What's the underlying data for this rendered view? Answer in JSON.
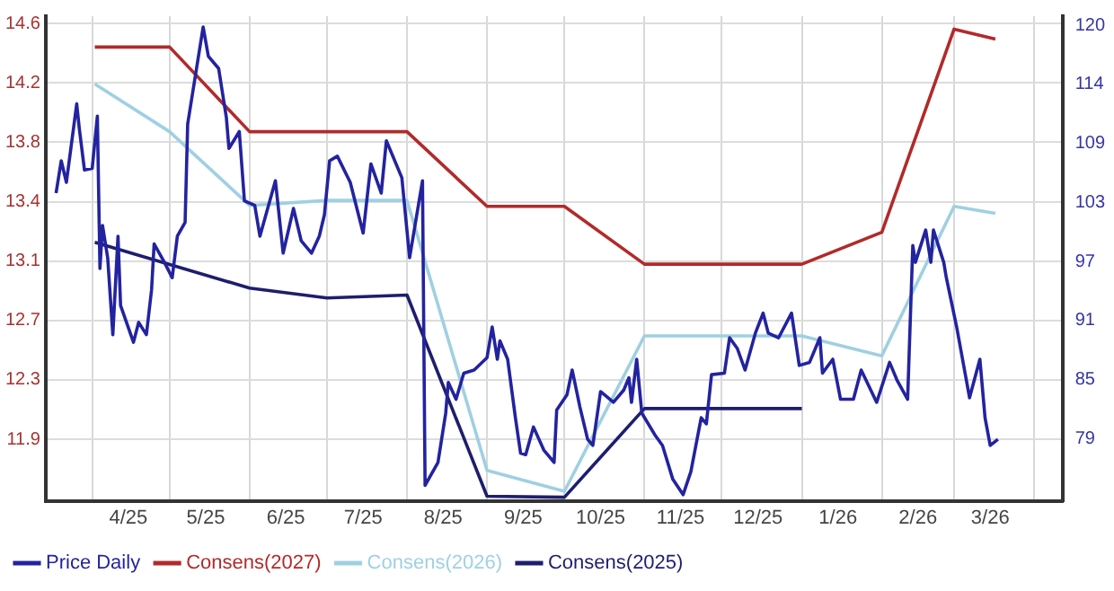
{
  "chart_data": {
    "type": "line",
    "legend": "bottom left",
    "grid": true,
    "marker": "none",
    "line_style": "solid",
    "xlim": [
      "2025-03-14",
      "2026-04-12"
    ],
    "xticks": [
      {
        "value": "2025-04-01",
        "label": null
      },
      {
        "value": "2025-04-15",
        "label": "4/25"
      },
      {
        "value": "2025-05-01",
        "label": null
      },
      {
        "value": "2025-05-15",
        "label": "5/25"
      },
      {
        "value": "2025-06-01",
        "label": null
      },
      {
        "value": "2025-06-15",
        "label": "6/25"
      },
      {
        "value": "2025-07-01",
        "label": null
      },
      {
        "value": "2025-07-15",
        "label": "7/25"
      },
      {
        "value": "2025-08-01",
        "label": null
      },
      {
        "value": "2025-08-15",
        "label": "8/25"
      },
      {
        "value": "2025-09-01",
        "label": null
      },
      {
        "value": "2025-09-15",
        "label": "9/25"
      },
      {
        "value": "2025-10-01",
        "label": null
      },
      {
        "value": "2025-10-15",
        "label": "10/25"
      },
      {
        "value": "2025-11-01",
        "label": null
      },
      {
        "value": "2025-11-15",
        "label": "11/25"
      },
      {
        "value": "2025-12-01",
        "label": null
      },
      {
        "value": "2025-12-15",
        "label": "12/25"
      },
      {
        "value": "2026-01-01",
        "label": null
      },
      {
        "value": "2026-01-15",
        "label": "1/26"
      },
      {
        "value": "2026-02-01",
        "label": null
      },
      {
        "value": "2026-02-15",
        "label": "2/26"
      },
      {
        "value": "2026-03-01",
        "label": null
      },
      {
        "value": "2026-03-15",
        "label": "3/26"
      },
      {
        "value": "2026-04-01",
        "label": null
      }
    ],
    "ylim": [
      11.5,
      14.65
    ],
    "yticks": [
      11.9,
      {
        "value": 12.286,
        "label": "12.3"
      },
      {
        "value": 12.672,
        "label": "12.7"
      },
      {
        "value": 13.058,
        "label": "13.1"
      },
      {
        "value": 13.444,
        "label": "13.4"
      },
      {
        "value": 13.83,
        "label": "13.8"
      },
      {
        "value": 14.216,
        "label": "14.2"
      },
      {
        "value": 14.602,
        "label": "14.6"
      }
    ],
    "y2lim": [
      72.64,
      121.3
    ],
    "y2ticks": [
      {
        "value": 78.9,
        "label": "79"
      },
      {
        "value": 84.825,
        "label": "85"
      },
      {
        "value": 90.75,
        "label": "91"
      },
      {
        "value": 96.675,
        "label": "97"
      },
      {
        "value": 102.6,
        "label": "103"
      },
      {
        "value": 108.525,
        "label": "109"
      },
      {
        "value": 114.45,
        "label": "114"
      },
      {
        "value": 120.375,
        "label": "120"
      }
    ],
    "series": [
      {
        "name": "Price Daily",
        "color": "#2323a0",
        "axis": "y",
        "x": [
          "2025-03-18",
          "2025-03-20",
          "2025-03-22",
          "2025-03-26",
          "2025-03-27",
          "2025-03-29",
          "2025-04-01",
          "2025-04-03",
          "2025-04-04",
          "2025-04-05",
          "2025-04-07",
          "2025-04-09",
          "2025-04-11",
          "2025-04-12",
          "2025-04-17",
          "2025-04-19",
          "2025-04-22",
          "2025-04-24",
          "2025-04-25",
          "2025-04-29",
          "2025-05-02",
          "2025-05-04",
          "2025-05-07",
          "2025-05-08",
          "2025-05-14",
          "2025-05-16",
          "2025-05-20",
          "2025-05-23",
          "2025-05-24",
          "2025-05-28",
          "2025-05-30",
          "2025-06-03",
          "2025-06-05",
          "2025-06-11",
          "2025-06-14",
          "2025-06-18",
          "2025-06-21",
          "2025-06-25",
          "2025-06-28",
          "2025-06-30",
          "2025-07-02",
          "2025-07-05",
          "2025-07-10",
          "2025-07-15",
          "2025-07-18",
          "2025-07-22",
          "2025-07-24",
          "2025-07-30",
          "2025-08-02",
          "2025-08-07",
          "2025-08-08",
          "2025-08-13",
          "2025-08-16",
          "2025-08-17",
          "2025-08-20",
          "2025-08-23",
          "2025-08-27",
          "2025-09-01",
          "2025-09-03",
          "2025-09-05",
          "2025-09-06",
          "2025-09-09",
          "2025-09-12",
          "2025-09-14",
          "2025-09-16",
          "2025-09-19",
          "2025-09-23",
          "2025-09-27",
          "2025-09-28",
          "2025-10-02",
          "2025-10-04",
          "2025-10-07",
          "2025-10-10",
          "2025-10-12",
          "2025-10-15",
          "2025-10-20",
          "2025-10-24",
          "2025-10-26",
          "2025-10-27",
          "2025-10-29",
          "2025-10-31",
          "2025-11-05",
          "2025-11-08",
          "2025-11-12",
          "2025-11-16",
          "2025-11-19",
          "2025-11-23",
          "2025-11-25",
          "2025-11-27",
          "2025-12-02",
          "2025-12-04",
          "2025-12-07",
          "2025-12-10",
          "2025-12-14",
          "2025-12-17",
          "2025-12-19",
          "2025-12-23",
          "2025-12-28",
          "2025-12-31",
          "2026-01-04",
          "2026-01-08",
          "2026-01-09",
          "2026-01-13",
          "2026-01-16",
          "2026-01-21",
          "2026-01-24",
          "2026-01-30",
          "2026-02-04",
          "2026-02-07",
          "2026-02-11",
          "2026-02-13",
          "2026-02-14",
          "2026-02-18",
          "2026-02-20",
          "2026-02-21",
          "2026-02-25",
          "2026-02-26",
          "2026-03-02",
          "2026-03-07",
          "2026-03-11",
          "2026-03-13",
          "2026-03-15",
          "2026-03-18"
        ],
        "values": [
          13.5,
          13.71,
          13.57,
          14.08,
          13.92,
          13.65,
          13.66,
          14.0,
          13.01,
          13.29,
          13.08,
          12.58,
          13.22,
          12.77,
          12.53,
          12.66,
          12.58,
          12.87,
          13.17,
          13.05,
          12.95,
          13.22,
          13.31,
          13.95,
          14.58,
          14.39,
          14.31,
          13.99,
          13.79,
          13.9,
          13.45,
          13.42,
          13.22,
          13.58,
          13.11,
          13.4,
          13.19,
          13.11,
          13.22,
          13.36,
          13.71,
          13.74,
          13.57,
          13.24,
          13.69,
          13.5,
          13.84,
          13.6,
          13.08,
          13.58,
          11.6,
          11.75,
          12.07,
          12.27,
          12.16,
          12.33,
          12.35,
          12.43,
          12.63,
          12.42,
          12.54,
          12.42,
          12.04,
          11.81,
          11.8,
          11.98,
          11.83,
          11.75,
          12.09,
          12.19,
          12.35,
          12.11,
          11.9,
          11.86,
          12.21,
          12.14,
          12.22,
          12.3,
          12.14,
          12.42,
          12.07,
          11.93,
          11.86,
          11.64,
          11.54,
          11.69,
          12.04,
          12.0,
          12.32,
          12.33,
          12.56,
          12.49,
          12.35,
          12.59,
          12.72,
          12.59,
          12.56,
          12.72,
          12.38,
          12.4,
          12.56,
          12.33,
          12.42,
          12.16,
          12.16,
          12.35,
          12.14,
          12.4,
          12.28,
          12.16,
          13.16,
          13.05,
          13.26,
          13.05,
          13.26,
          13.05,
          12.95,
          12.63,
          12.17,
          12.42,
          12.04,
          11.86,
          11.9
        ]
      },
      {
        "name": "Consens(2027)",
        "color": "#b22a2a",
        "axis": "y2",
        "x": [
          "2025-04-02",
          "2025-05-01",
          "2025-06-01",
          "2025-08-01",
          "2025-09-01",
          "2025-10-01",
          "2025-11-01",
          "2026-01-01",
          "2026-02-01",
          "2026-03-01",
          "2026-03-17"
        ],
        "values": [
          118.2,
          118.2,
          109.7,
          109.7,
          102.2,
          102.2,
          96.4,
          96.4,
          99.6,
          120.0,
          119.0
        ]
      },
      {
        "name": "Consens(2026)",
        "color": "#9fd0e2",
        "axis": "y2",
        "x": [
          "2025-04-02",
          "2025-05-01",
          "2025-06-01",
          "2025-07-01",
          "2025-08-01",
          "2025-09-01",
          "2025-10-01",
          "2025-11-01",
          "2026-01-01",
          "2026-02-01",
          "2026-03-01",
          "2026-03-17"
        ],
        "values": [
          114.5,
          109.7,
          102.3,
          102.8,
          102.8,
          75.7,
          73.6,
          89.2,
          89.2,
          87.2,
          102.2,
          101.5
        ]
      },
      {
        "name": "Consens(2025)",
        "color": "#1e1e6e",
        "axis": "y2",
        "x": [
          "2025-04-02",
          "2025-06-01",
          "2025-07-01",
          "2025-08-01",
          "2025-09-01",
          "2025-10-01",
          "2025-11-01",
          "2026-01-01"
        ],
        "values": [
          98.6,
          94.0,
          93.0,
          93.3,
          73.1,
          73.0,
          81.9,
          81.9
        ]
      }
    ]
  }
}
